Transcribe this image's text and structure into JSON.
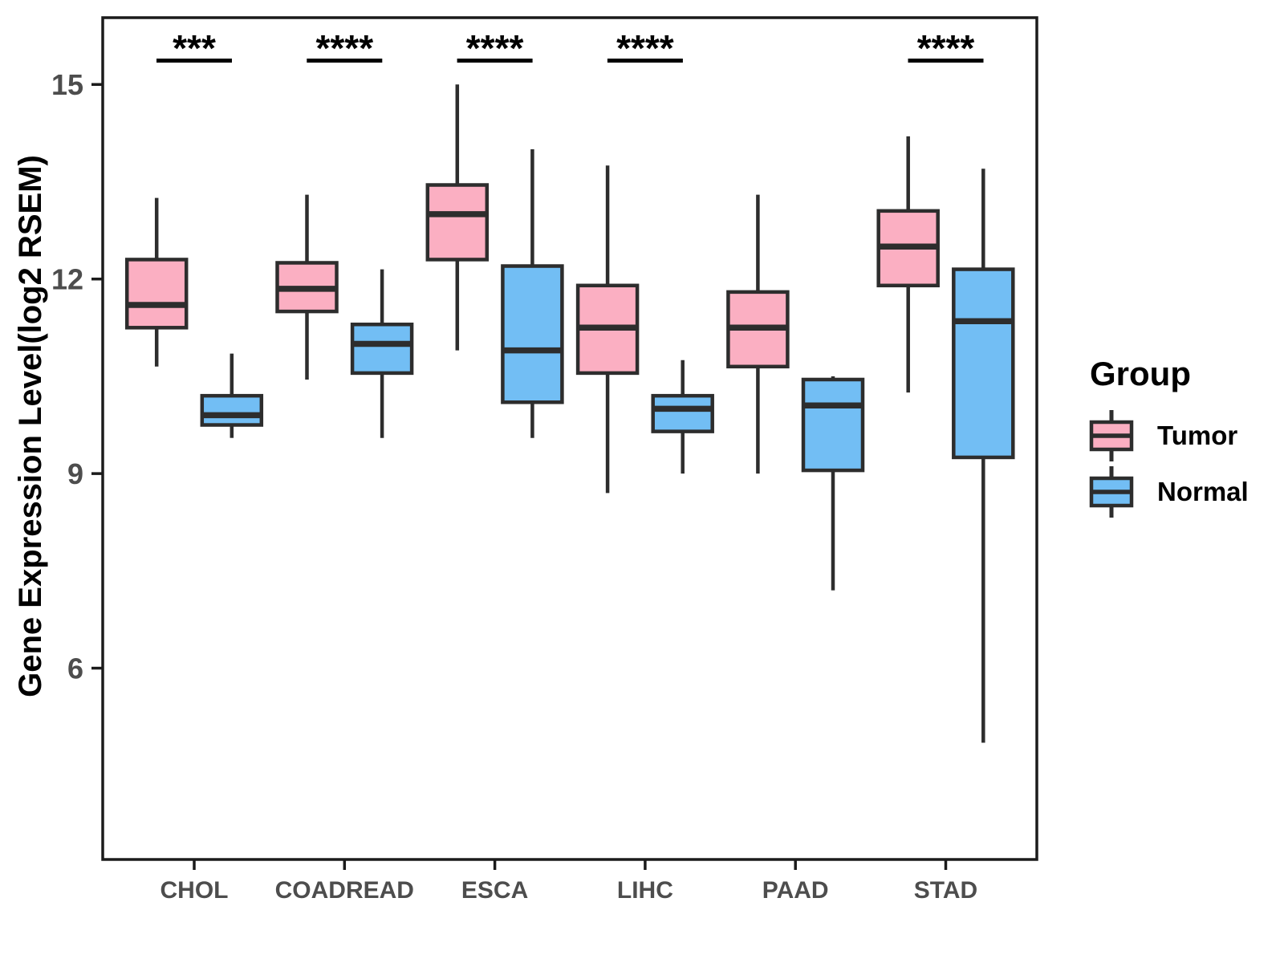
{
  "chart_data": {
    "type": "bar",
    "subtype": "grouped-boxplot",
    "title": "",
    "xlabel": "",
    "ylabel": "Gene Expression Level(log2 RSEM)",
    "ylim": [
      3.0,
      16.0
    ],
    "yticks": [
      6,
      9,
      12,
      15
    ],
    "grid": "off",
    "legend_position": "right",
    "legend_title": "Group",
    "categories": [
      "CHOL",
      "COADREAD",
      "ESCA",
      "LIHC",
      "PAAD",
      "STAD"
    ],
    "groups": [
      {
        "name": "Tumor",
        "color": "#FBAFC2"
      },
      {
        "name": "Normal",
        "color": "#72BEF4"
      }
    ],
    "box_outline_color": "#2d2d2d",
    "significance": [
      "***",
      "****",
      "****",
      "****",
      null,
      "****"
    ],
    "series": [
      {
        "name": "Tumor",
        "boxes": [
          {
            "category": "CHOL",
            "min": 10.65,
            "q1": 11.25,
            "median": 11.6,
            "q3": 12.3,
            "max": 13.25
          },
          {
            "category": "COADREAD",
            "min": 10.45,
            "q1": 11.5,
            "median": 11.85,
            "q3": 12.25,
            "max": 13.3
          },
          {
            "category": "ESCA",
            "min": 10.9,
            "q1": 12.3,
            "median": 13.0,
            "q3": 13.45,
            "max": 15.0
          },
          {
            "category": "LIHC",
            "min": 8.7,
            "q1": 10.55,
            "median": 11.25,
            "q3": 11.9,
            "max": 13.75
          },
          {
            "category": "PAAD",
            "min": 9.0,
            "q1": 10.65,
            "median": 11.25,
            "q3": 11.8,
            "max": 13.3
          },
          {
            "category": "STAD",
            "min": 10.25,
            "q1": 11.9,
            "median": 12.5,
            "q3": 13.05,
            "max": 14.2
          }
        ]
      },
      {
        "name": "Normal",
        "boxes": [
          {
            "category": "CHOL",
            "min": 9.55,
            "q1": 9.75,
            "median": 9.9,
            "q3": 10.2,
            "max": 10.85
          },
          {
            "category": "COADREAD",
            "min": 9.55,
            "q1": 10.55,
            "median": 11.0,
            "q3": 11.3,
            "max": 12.15
          },
          {
            "category": "ESCA",
            "min": 9.55,
            "q1": 10.1,
            "median": 10.9,
            "q3": 12.2,
            "max": 14.0
          },
          {
            "category": "LIHC",
            "min": 9.0,
            "q1": 9.65,
            "median": 10.0,
            "q3": 10.2,
            "max": 10.75
          },
          {
            "category": "PAAD",
            "min": 7.2,
            "q1": 9.05,
            "median": 10.05,
            "q3": 10.45,
            "max": 10.5
          },
          {
            "category": "STAD",
            "min": 4.85,
            "q1": 9.25,
            "median": 11.35,
            "q3": 12.15,
            "max": 13.7
          }
        ]
      }
    ]
  }
}
